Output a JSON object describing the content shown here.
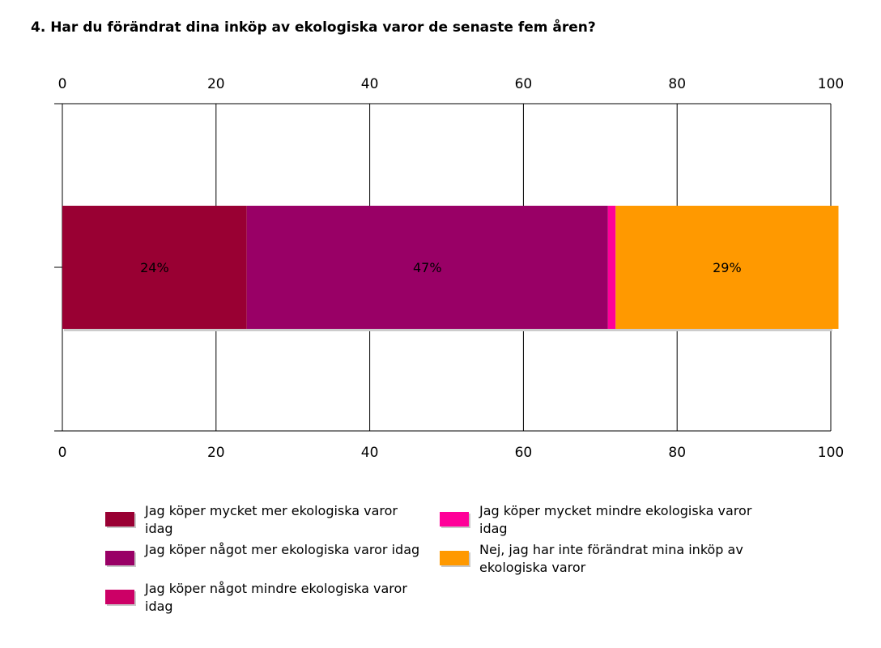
{
  "chart_data": {
    "type": "bar",
    "orientation": "horizontal",
    "stacked": true,
    "title": "4. Har du förändrat dina inköp av ekologiska varor de senaste fem åren?",
    "xlim": [
      0,
      100
    ],
    "xticks": [
      "0",
      "20",
      "40",
      "60",
      "80",
      "100"
    ],
    "grid": true,
    "legend_position": "bottom",
    "series": [
      {
        "name": "Jag köper mycket mer ekologiska varor idag",
        "value": 24,
        "label": "24%",
        "color": "#990033"
      },
      {
        "name": "Jag köper något mer ekologiska varor idag",
        "value": 47,
        "label": "47%",
        "color": "#990066"
      },
      {
        "name": "Jag köper något mindre ekologiska varor idag",
        "value": 0,
        "label": "",
        "color": "#cc0066"
      },
      {
        "name": "Jag köper mycket mindre ekologiska varor idag",
        "value": 1,
        "label": "",
        "color": "#ff0099"
      },
      {
        "name": "Nej, jag har inte förändrat mina inköp av ekologiska varor",
        "value": 29,
        "label": "29%",
        "color": "#ff9900"
      }
    ]
  }
}
